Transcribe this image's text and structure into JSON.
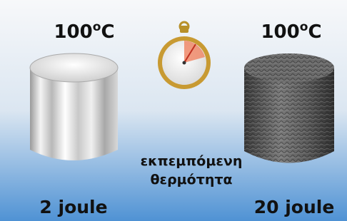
{
  "left": {
    "temperature": {
      "number": "100",
      "degree": "o",
      "unit": "C"
    },
    "energy": "2 joule"
  },
  "right": {
    "temperature": {
      "number": "100",
      "degree": "o",
      "unit": "C"
    },
    "energy": "20 joule"
  },
  "caption": {
    "line1": "εκπεμπόμενη",
    "line2": "θερμότητα"
  }
}
